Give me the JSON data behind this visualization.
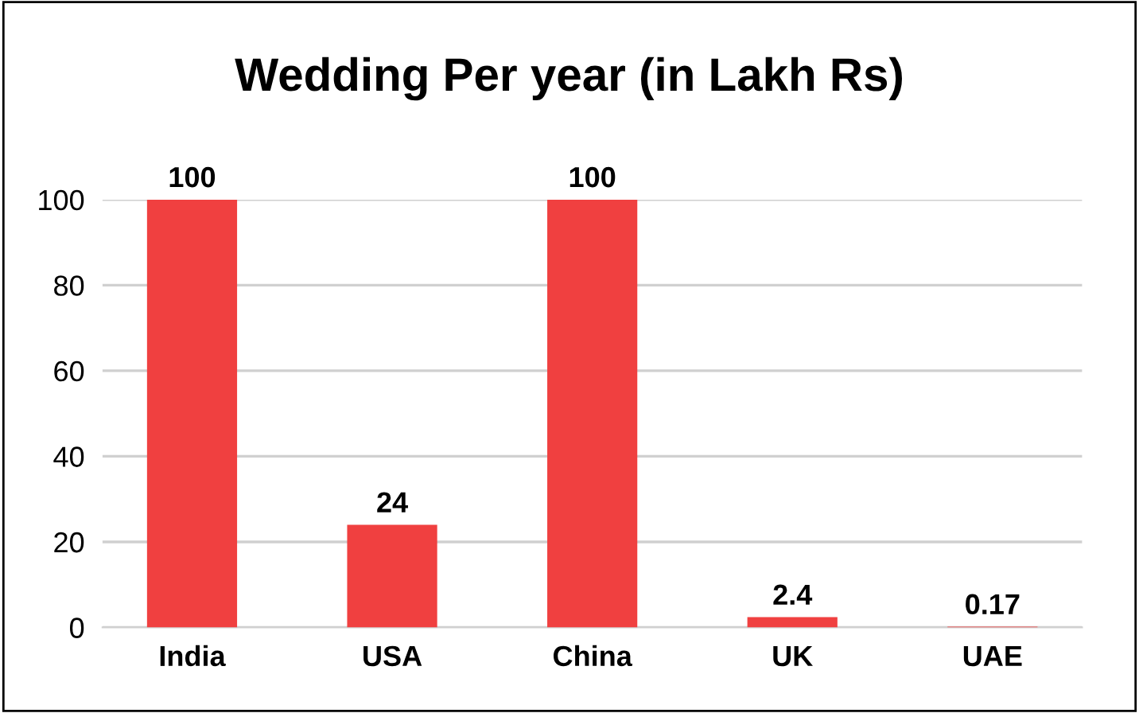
{
  "chart_data": {
    "type": "bar",
    "title": "Wedding Per year (in Lakh Rs)",
    "categories": [
      "India",
      "USA",
      "China",
      "UK",
      "UAE"
    ],
    "values": [
      100,
      24,
      100,
      2.4,
      0.17
    ],
    "color": "#f04040",
    "ylim": [
      0,
      100
    ],
    "yticks": [
      0,
      20,
      40,
      60,
      80,
      100
    ],
    "grid": "y",
    "data_labels": true
  }
}
